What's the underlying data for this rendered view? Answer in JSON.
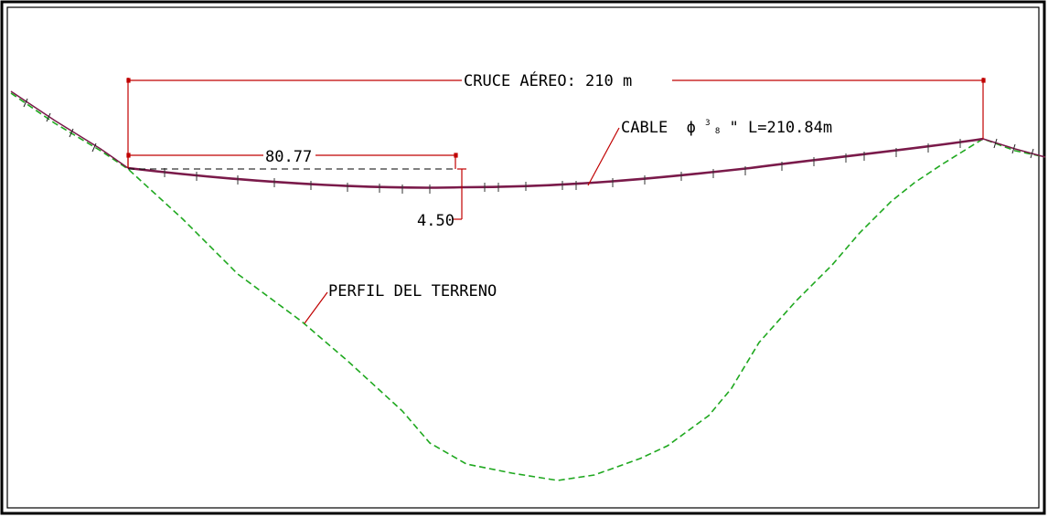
{
  "labels": {
    "span": "CRUCE AÉREO: 210 m",
    "cable_prefix": "CABLE ",
    "cable_phi": "ϕ",
    "cable_frac_num": "3",
    "cable_frac_den": "8",
    "cable_suffix": "\" L=210.84m",
    "sag_distance": "80.77",
    "sag_depth": "4.50",
    "terrain": "PERFIL DEL TERRENO"
  },
  "colors": {
    "dimension": "#c00000",
    "cable": "#7a1a4a",
    "terrain": "#1fa81f",
    "text": "#000000",
    "frame": "#000000"
  }
}
